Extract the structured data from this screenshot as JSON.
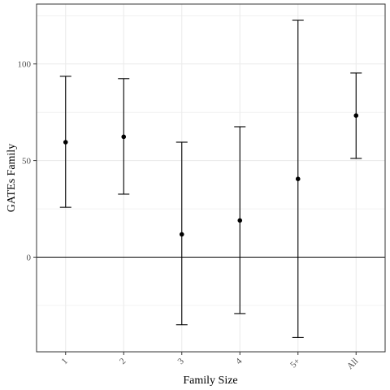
{
  "chart_data": {
    "type": "errorbar",
    "title": "",
    "xlabel": "Family Size",
    "ylabel": "GATEs Family",
    "categories": [
      "1",
      "2",
      "3",
      "4",
      "5+",
      "All"
    ],
    "series": [
      {
        "values": [
          59.5,
          62.3,
          11.8,
          19.0,
          40.5,
          73.3
        ],
        "lower": [
          25.8,
          32.6,
          -35.0,
          -29.2,
          -41.6,
          51.1
        ],
        "upper": [
          93.6,
          92.4,
          59.5,
          67.5,
          122.6,
          95.3
        ]
      }
    ],
    "ylim": [
      -49,
      131
    ],
    "yticks": [
      0,
      50,
      100
    ],
    "reference_line": 0,
    "grid": true,
    "legend": "none",
    "colors": {
      "background": "#ffffff",
      "grid": "#ebebeb",
      "border": "#333333",
      "marks": "#000000",
      "tick_text": "#4d4d4d"
    }
  }
}
